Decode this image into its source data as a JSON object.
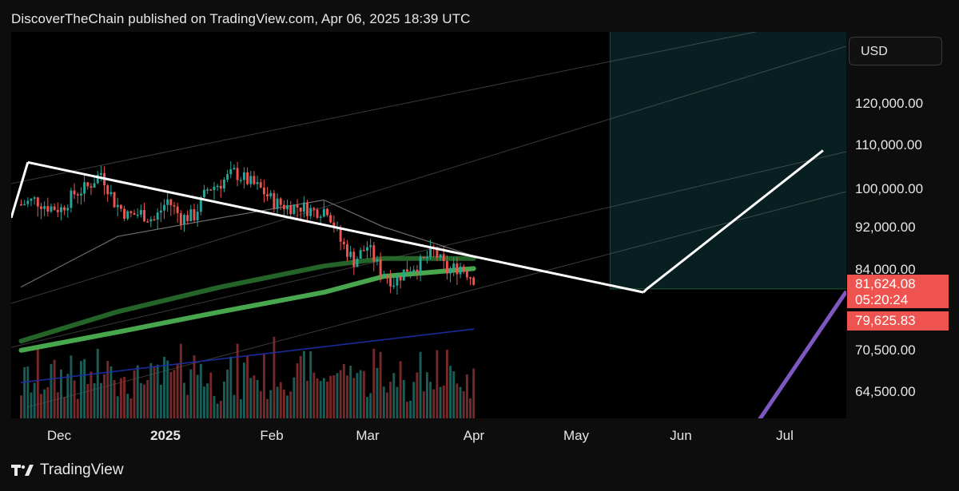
{
  "header": {
    "text": "DiscoverTheChain published on TradingView.com, Apr 06, 2025 18:39 UTC"
  },
  "price_axis": {
    "currency": "USD",
    "ticks": [
      "120,000.00",
      "110,000.00",
      "100,000.00",
      "92,000.00",
      "84,000.00",
      "70,500.00",
      "64,500.00"
    ],
    "last_price": "81,624.08",
    "countdown": "05:20:24",
    "level_price": "79,625.83"
  },
  "time_axis": {
    "ticks": [
      "Dec",
      "2025",
      "Feb",
      "Mar",
      "Apr",
      "May",
      "Jun",
      "Jul"
    ]
  },
  "footer": {
    "brand": "TradingView"
  },
  "colors": {
    "up": "#26a69a",
    "down": "#ef5350",
    "range_box_fill": "#2a0b0e",
    "range_box_border": "#d9434b",
    "projection_fill": "#081f22",
    "trendline": "#ffffff",
    "ma_long": "#4caf50",
    "ma_mid": "#2e7d32",
    "ma_short": "#8a8a8a",
    "ma_blue": "#1e2fa8",
    "projection_purple": "#7e57c2"
  },
  "chart_data": {
    "type": "candlestick",
    "symbol_quote": "USD",
    "scale": "log",
    "ylim": [
      62000,
      132000
    ],
    "y_ticks": [
      64500,
      70500,
      84000,
      92000,
      100000,
      110000,
      120000
    ],
    "x_ticks": [
      "Dec",
      "2025",
      "Feb",
      "Mar",
      "Apr",
      "May",
      "Jun",
      "Jul"
    ],
    "series": [
      {
        "type": "candlestick",
        "x": [
          "2024-11-21",
          "2024-11-25",
          "2024-11-29",
          "2024-12-03",
          "2024-12-07",
          "2024-12-11",
          "2024-12-15",
          "2024-12-19",
          "2024-12-23",
          "2024-12-27",
          "2024-12-31",
          "2025-01-04",
          "2025-01-08",
          "2025-01-12",
          "2025-01-16",
          "2025-01-20",
          "2025-01-24",
          "2025-01-28",
          "2025-02-01",
          "2025-02-05",
          "2025-02-09",
          "2025-02-13",
          "2025-02-17",
          "2025-02-21",
          "2025-02-25",
          "2025-03-01",
          "2025-03-05",
          "2025-03-09",
          "2025-03-13",
          "2025-03-17",
          "2025-03-21",
          "2025-03-25",
          "2025-03-29",
          "2025-04-02",
          "2025-04-06"
        ],
        "close": [
          97000,
          98000,
          96500,
          96000,
          99500,
          101000,
          104500,
          97500,
          94500,
          95000,
          93500,
          98000,
          94000,
          94500,
          100500,
          102000,
          104500,
          102500,
          100500,
          97500,
          96500,
          96500,
          95500,
          96000,
          89000,
          85000,
          88000,
          83000,
          81000,
          83500,
          84500,
          87000,
          83000,
          84000,
          81624
        ]
      },
      {
        "name": "",
        "type": "line",
        "x": [
          "2024-11-21",
          "2024-12-20",
          "2025-01-20",
          "2025-02-20",
          "2025-03-10",
          "2025-04-06"
        ],
        "y": [
          69000,
          72000,
          75500,
          79000,
          82000,
          83500
        ]
      },
      {
        "name": "",
        "type": "line",
        "x": [
          "2024-11-21",
          "2024-12-20",
          "2025-01-20",
          "2025-02-20",
          "2025-03-10",
          "2025-04-06"
        ],
        "y": [
          70500,
          75500,
          80000,
          84000,
          85500,
          85500
        ]
      },
      {
        "name": "",
        "type": "line",
        "x": [
          "2024-11-21",
          "2024-12-20",
          "2025-01-20",
          "2025-02-20",
          "2025-03-10",
          "2025-04-06"
        ],
        "y": [
          80000,
          90000,
          94000,
          98000,
          92000,
          86000
        ]
      },
      {
        "name": "",
        "type": "line",
        "x": [
          "2024-11-21",
          "2025-04-06"
        ],
        "y": [
          64000,
          72500
        ]
      }
    ],
    "annotations": [
      {
        "type": "trendline",
        "x": [
          "2024-11-23",
          "2025-05-27"
        ],
        "y": [
          107000,
          79000
        ]
      },
      {
        "type": "projection",
        "x": [
          "2025-05-28",
          "2025-07-20"
        ],
        "y": [
          79600,
          110000
        ]
      },
      {
        "type": "range_box",
        "x": [
          "2024-11-23",
          "2025-05-17"
        ],
        "y": [
          79600,
          107000
        ]
      },
      {
        "type": "horizontal_level",
        "y": 79625.83
      }
    ]
  }
}
